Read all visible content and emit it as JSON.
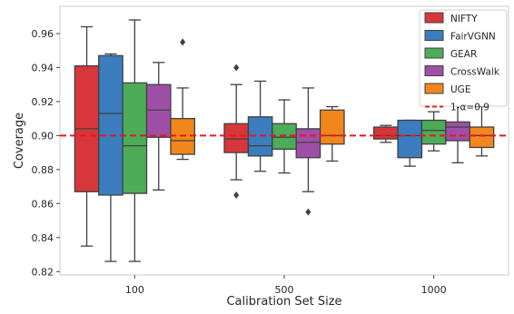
{
  "chart_data": {
    "type": "boxplot",
    "xlabel": "Calibration Set Size",
    "ylabel": "Coverage",
    "categories": [
      "100",
      "500",
      "1000"
    ],
    "ylim": [
      0.818,
      0.976
    ],
    "yticks": [
      0.82,
      0.84,
      0.86,
      0.88,
      0.9,
      0.92,
      0.94,
      0.96
    ],
    "ytick_labels": [
      "0.82",
      "0.84",
      "0.86",
      "0.88",
      "0.90",
      "0.92",
      "0.94",
      "0.96"
    ],
    "grid": false,
    "legend_position": "top-right",
    "reference_line": {
      "value": 0.9,
      "label": "1-α=0.9",
      "color": "#e41a1c",
      "style": "dashed"
    },
    "series": [
      {
        "name": "NIFTY",
        "color": "#d7363a",
        "boxes": [
          {
            "whislo": 0.835,
            "q1": 0.867,
            "med": 0.904,
            "q3": 0.941,
            "whishi": 0.964,
            "fliers": []
          },
          {
            "whislo": 0.874,
            "q1": 0.89,
            "med": 0.898,
            "q3": 0.907,
            "whishi": 0.93,
            "fliers": [
              0.865,
              0.94
            ]
          },
          {
            "whislo": 0.896,
            "q1": 0.898,
            "med": 0.9,
            "q3": 0.905,
            "whishi": 0.906,
            "fliers": []
          }
        ]
      },
      {
        "name": "FairVGNN",
        "color": "#3b7dbf",
        "boxes": [
          {
            "whislo": 0.826,
            "q1": 0.865,
            "med": 0.913,
            "q3": 0.947,
            "whishi": 0.948,
            "fliers": []
          },
          {
            "whislo": 0.879,
            "q1": 0.888,
            "med": 0.894,
            "q3": 0.911,
            "whishi": 0.932,
            "fliers": []
          },
          {
            "whislo": 0.882,
            "q1": 0.887,
            "med": 0.9,
            "q3": 0.909,
            "whishi": 0.909,
            "fliers": []
          }
        ]
      },
      {
        "name": "GEAR",
        "color": "#4dac57",
        "boxes": [
          {
            "whislo": 0.826,
            "q1": 0.866,
            "med": 0.894,
            "q3": 0.931,
            "whishi": 0.968,
            "fliers": []
          },
          {
            "whislo": 0.878,
            "q1": 0.892,
            "med": 0.899,
            "q3": 0.907,
            "whishi": 0.921,
            "fliers": []
          },
          {
            "whislo": 0.891,
            "q1": 0.895,
            "med": 0.903,
            "q3": 0.909,
            "whishi": 0.914,
            "fliers": []
          }
        ]
      },
      {
        "name": "CrossWalk",
        "color": "#9e4fa6",
        "boxes": [
          {
            "whislo": 0.868,
            "q1": 0.899,
            "med": 0.915,
            "q3": 0.93,
            "whishi": 0.943,
            "fliers": []
          },
          {
            "whislo": 0.867,
            "q1": 0.887,
            "med": 0.896,
            "q3": 0.904,
            "whishi": 0.928,
            "fliers": [
              0.855
            ]
          },
          {
            "whislo": 0.884,
            "q1": 0.897,
            "med": 0.905,
            "q3": 0.908,
            "whishi": 0.92,
            "fliers": []
          }
        ]
      },
      {
        "name": "UGE",
        "color": "#f1861c",
        "boxes": [
          {
            "whislo": 0.886,
            "q1": 0.889,
            "med": 0.897,
            "q3": 0.91,
            "whishi": 0.928,
            "fliers": [
              0.955
            ]
          },
          {
            "whislo": 0.885,
            "q1": 0.895,
            "med": 0.9,
            "q3": 0.915,
            "whishi": 0.917,
            "fliers": []
          },
          {
            "whislo": 0.888,
            "q1": 0.893,
            "med": 0.9,
            "q3": 0.905,
            "whishi": 0.917,
            "fliers": []
          }
        ]
      }
    ]
  }
}
